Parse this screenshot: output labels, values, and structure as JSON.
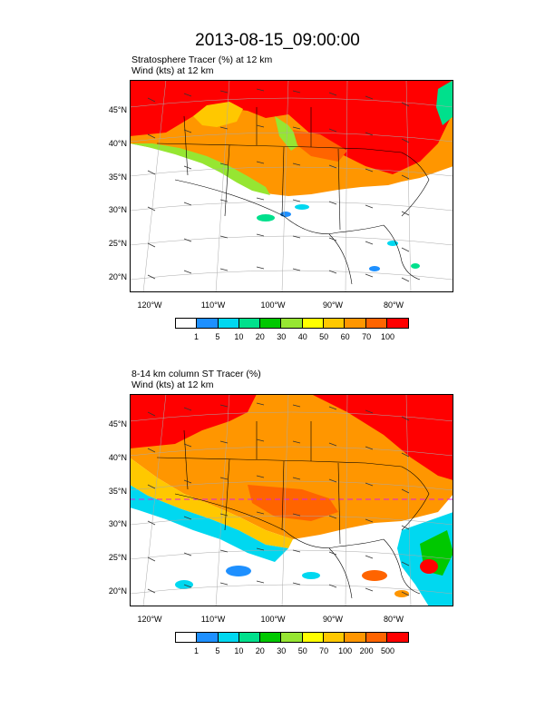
{
  "page_title": "2013-08-15_09:00:00",
  "panels": [
    {
      "subtitle_line1": "Stratosphere Tracer   (%)     at   12 km",
      "subtitle_line2": "Wind   (kts)     at   12 km",
      "lat_labels": [
        "45°N",
        "40°N",
        "35°N",
        "30°N",
        "25°N",
        "20°N"
      ],
      "lon_labels": [
        "120°W",
        "110°W",
        "100°W",
        "90°W",
        "80°W"
      ],
      "colorbar_labels": [
        "1",
        "5",
        "10",
        "20",
        "30",
        "40",
        "50",
        "60",
        "70",
        "100"
      ]
    },
    {
      "subtitle_line1": "8-14 km column ST Tracer   (%)",
      "subtitle_line2": "Wind   (kts)     at   12 km",
      "lat_labels": [
        "45°N",
        "40°N",
        "35°N",
        "30°N",
        "25°N",
        "20°N"
      ],
      "lon_labels": [
        "120°W",
        "110°W",
        "100°W",
        "90°W",
        "80°W"
      ],
      "colorbar_labels": [
        "1",
        "5",
        "10",
        "20",
        "30",
        "50",
        "70",
        "100",
        "200",
        "500"
      ]
    }
  ],
  "colorbar_colors": [
    "#ffffff",
    "#1e90ff",
    "#00d8f0",
    "#00e08c",
    "#00c800",
    "#96e632",
    "#ffff00",
    "#ffc800",
    "#ff9600",
    "#ff6400",
    "#ff0000"
  ]
}
